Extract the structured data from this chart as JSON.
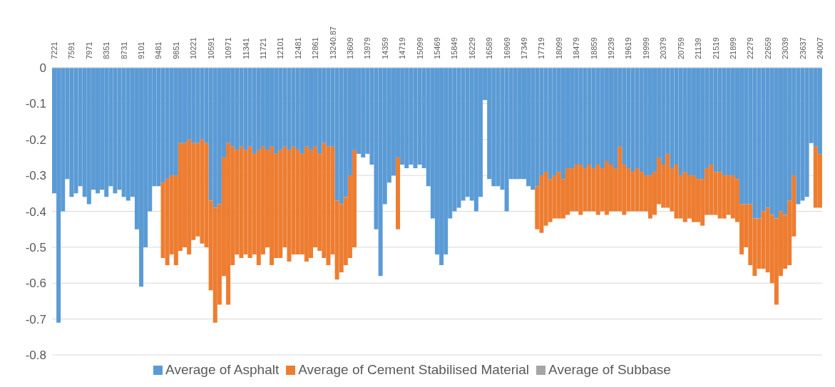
{
  "chart_data": {
    "type": "bar",
    "stacked": true,
    "categories": [
      "7221",
      null,
      null,
      null,
      "7591",
      null,
      null,
      null,
      "7971",
      null,
      null,
      null,
      "8351",
      null,
      null,
      null,
      "8731",
      null,
      null,
      null,
      "9101",
      null,
      null,
      null,
      "9481",
      null,
      null,
      null,
      "9851",
      null,
      null,
      null,
      "10221",
      null,
      null,
      null,
      "10591",
      null,
      null,
      null,
      "10971",
      null,
      null,
      null,
      "11341",
      null,
      null,
      null,
      "11721",
      null,
      null,
      null,
      "12101",
      null,
      null,
      null,
      "12481",
      null,
      null,
      null,
      "12861",
      null,
      null,
      null,
      "13240.87",
      null,
      null,
      null,
      "13609",
      null,
      null,
      null,
      "13979",
      null,
      null,
      null,
      "14359",
      null,
      null,
      null,
      "14719",
      null,
      null,
      null,
      "15099",
      null,
      null,
      null,
      "15469",
      null,
      null,
      null,
      "15849",
      null,
      null,
      null,
      "16229",
      null,
      null,
      null,
      "16589",
      null,
      null,
      null,
      "16969",
      null,
      null,
      null,
      "17349",
      null,
      null,
      null,
      "17719",
      null,
      null,
      null,
      "18099",
      null,
      null,
      null,
      "18479",
      null,
      null,
      null,
      "18859",
      null,
      null,
      null,
      "19239",
      null,
      null,
      null,
      "19619",
      null,
      null,
      null,
      "19999",
      null,
      null,
      null,
      "20379",
      null,
      null,
      null,
      "20759",
      null,
      null,
      null,
      "21139",
      null,
      null,
      null,
      "21519",
      null,
      null,
      null,
      "21899",
      null,
      null,
      null,
      "22279",
      null,
      null,
      null,
      "22659",
      null,
      null,
      null,
      "23039",
      null,
      null,
      null,
      "23637",
      null,
      null,
      null,
      "24007"
    ],
    "series": [
      {
        "name": "Average of Asphalt",
        "color": "#5b9bd5",
        "values": [
          -0.35,
          -0.71,
          -0.4,
          -0.31,
          -0.36,
          -0.35,
          -0.33,
          -0.36,
          -0.38,
          -0.34,
          -0.35,
          -0.34,
          -0.36,
          -0.33,
          -0.35,
          -0.34,
          -0.36,
          -0.37,
          -0.36,
          -0.45,
          -0.61,
          -0.5,
          -0.4,
          -0.33,
          -0.33,
          -0.32,
          -0.31,
          -0.3,
          -0.3,
          -0.21,
          -0.21,
          -0.2,
          -0.21,
          -0.21,
          -0.2,
          -0.21,
          -0.37,
          -0.39,
          -0.38,
          -0.25,
          -0.21,
          -0.22,
          -0.23,
          -0.22,
          -0.23,
          -0.22,
          -0.24,
          -0.23,
          -0.22,
          -0.23,
          -0.22,
          -0.24,
          -0.23,
          -0.22,
          -0.23,
          -0.22,
          -0.23,
          -0.24,
          -0.22,
          -0.23,
          -0.22,
          -0.24,
          -0.21,
          -0.22,
          -0.22,
          -0.37,
          -0.38,
          -0.36,
          -0.3,
          -0.23,
          -0.24,
          -0.25,
          -0.24,
          -0.27,
          -0.45,
          -0.58,
          -0.38,
          -0.32,
          -0.3,
          -0.25,
          -0.27,
          -0.28,
          -0.27,
          -0.28,
          -0.27,
          -0.28,
          -0.33,
          -0.42,
          -0.52,
          -0.55,
          -0.52,
          -0.42,
          -0.4,
          -0.39,
          -0.37,
          -0.36,
          -0.37,
          -0.4,
          -0.36,
          -0.09,
          -0.31,
          -0.33,
          -0.33,
          -0.34,
          -0.4,
          -0.31,
          -0.31,
          -0.31,
          -0.31,
          -0.33,
          -0.34,
          -0.33,
          -0.3,
          -0.29,
          -0.31,
          -0.3,
          -0.29,
          -0.31,
          -0.28,
          -0.28,
          -0.27,
          -0.27,
          -0.28,
          -0.27,
          -0.28,
          -0.27,
          -0.28,
          -0.26,
          -0.27,
          -0.28,
          -0.22,
          -0.27,
          -0.28,
          -0.29,
          -0.28,
          -0.29,
          -0.3,
          -0.3,
          -0.29,
          -0.25,
          -0.27,
          -0.24,
          -0.28,
          -0.27,
          -0.3,
          -0.29,
          -0.3,
          -0.3,
          -0.31,
          -0.31,
          -0.28,
          -0.27,
          -0.29,
          -0.29,
          -0.3,
          -0.3,
          -0.3,
          -0.31,
          -0.38,
          -0.38,
          -0.38,
          -0.42,
          -0.42,
          -0.4,
          -0.39,
          -0.41,
          -0.42,
          -0.4,
          -0.41,
          -0.37,
          -0.3,
          -0.38,
          -0.37,
          -0.36,
          -0.21,
          -0.22,
          -0.24
        ]
      },
      {
        "name": "Average of Cement Stabilised Material",
        "color": "#ed7d31",
        "values": [
          null,
          null,
          null,
          null,
          null,
          null,
          null,
          null,
          null,
          null,
          null,
          null,
          null,
          null,
          null,
          null,
          null,
          null,
          null,
          null,
          null,
          null,
          null,
          null,
          null,
          -0.21,
          -0.24,
          -0.22,
          -0.25,
          -0.3,
          -0.29,
          -0.32,
          -0.27,
          -0.26,
          -0.29,
          -0.29,
          -0.25,
          -0.32,
          -0.28,
          -0.33,
          -0.45,
          -0.33,
          -0.29,
          -0.31,
          -0.29,
          -0.31,
          -0.28,
          -0.32,
          -0.3,
          -0.27,
          -0.33,
          -0.29,
          -0.3,
          -0.28,
          -0.31,
          -0.3,
          -0.29,
          -0.28,
          -0.32,
          -0.3,
          -0.28,
          -0.27,
          -0.32,
          -0.33,
          -0.3,
          -0.22,
          -0.19,
          -0.19,
          -0.23,
          -0.27,
          null,
          null,
          null,
          null,
          null,
          null,
          null,
          null,
          null,
          -0.2,
          null,
          null,
          null,
          null,
          null,
          null,
          null,
          null,
          null,
          null,
          null,
          null,
          null,
          null,
          null,
          null,
          null,
          null,
          null,
          null,
          null,
          null,
          null,
          null,
          null,
          null,
          null,
          null,
          null,
          null,
          null,
          -0.12,
          -0.16,
          -0.15,
          -0.12,
          -0.12,
          -0.13,
          -0.11,
          -0.13,
          -0.12,
          -0.13,
          -0.14,
          -0.12,
          -0.13,
          -0.12,
          -0.14,
          -0.12,
          -0.15,
          -0.13,
          -0.12,
          -0.18,
          -0.14,
          -0.12,
          -0.11,
          -0.12,
          -0.11,
          -0.1,
          -0.12,
          -0.12,
          -0.13,
          -0.12,
          -0.15,
          -0.12,
          -0.15,
          -0.12,
          -0.14,
          -0.12,
          -0.13,
          -0.12,
          -0.13,
          -0.13,
          -0.14,
          -0.12,
          -0.13,
          -0.12,
          -0.11,
          -0.12,
          -0.12,
          -0.14,
          -0.12,
          -0.17,
          -0.16,
          -0.14,
          -0.16,
          -0.18,
          -0.19,
          -0.24,
          -0.18,
          -0.15,
          -0.18,
          -0.17,
          null,
          null,
          null,
          null,
          -0.17,
          -0.15
        ]
      },
      {
        "name": "Average of Subbase",
        "color": "#a5a5a5",
        "values": [
          null,
          null,
          null,
          null,
          null,
          null,
          null,
          null,
          null,
          null,
          null,
          null,
          null,
          null,
          null,
          null,
          null,
          null,
          null,
          null,
          null,
          null,
          null,
          null,
          null,
          null,
          null,
          null,
          null,
          null,
          null,
          null,
          null,
          null,
          null,
          null,
          null,
          null,
          null,
          null,
          null,
          null,
          null,
          null,
          null,
          null,
          null,
          null,
          null,
          null,
          null,
          null,
          null,
          null,
          null,
          null,
          null,
          null,
          null,
          null,
          null,
          null,
          null,
          null,
          null,
          null,
          null,
          null,
          null,
          null,
          null,
          null,
          null,
          null,
          null,
          null,
          null,
          null,
          null,
          null,
          null,
          null,
          null,
          null,
          null,
          null,
          null,
          null,
          null,
          null,
          null,
          null,
          null,
          null,
          null,
          null,
          null,
          null,
          null,
          null,
          null,
          null,
          null,
          null,
          null,
          null,
          null,
          null,
          null,
          null,
          null,
          null,
          null,
          null,
          null,
          null,
          null,
          null,
          null,
          null,
          null,
          null,
          null,
          null,
          null,
          null,
          null,
          null,
          null,
          null,
          null,
          null,
          null,
          null,
          null,
          null,
          null,
          null,
          null,
          null,
          null,
          null,
          null,
          null,
          null,
          null,
          null,
          null,
          null,
          null,
          null,
          null,
          null,
          null,
          null,
          null,
          null,
          null,
          null,
          null,
          null,
          null,
          null,
          null,
          null,
          null,
          null,
          null,
          null,
          null,
          null,
          null,
          null,
          null,
          null,
          null,
          null
        ]
      }
    ],
    "ylim": [
      -0.8,
      0
    ],
    "yticks": [
      0,
      -0.1,
      -0.2,
      -0.3,
      -0.4,
      -0.5,
      -0.6,
      -0.7,
      -0.8
    ],
    "grid": "y",
    "legend": "bottom"
  }
}
